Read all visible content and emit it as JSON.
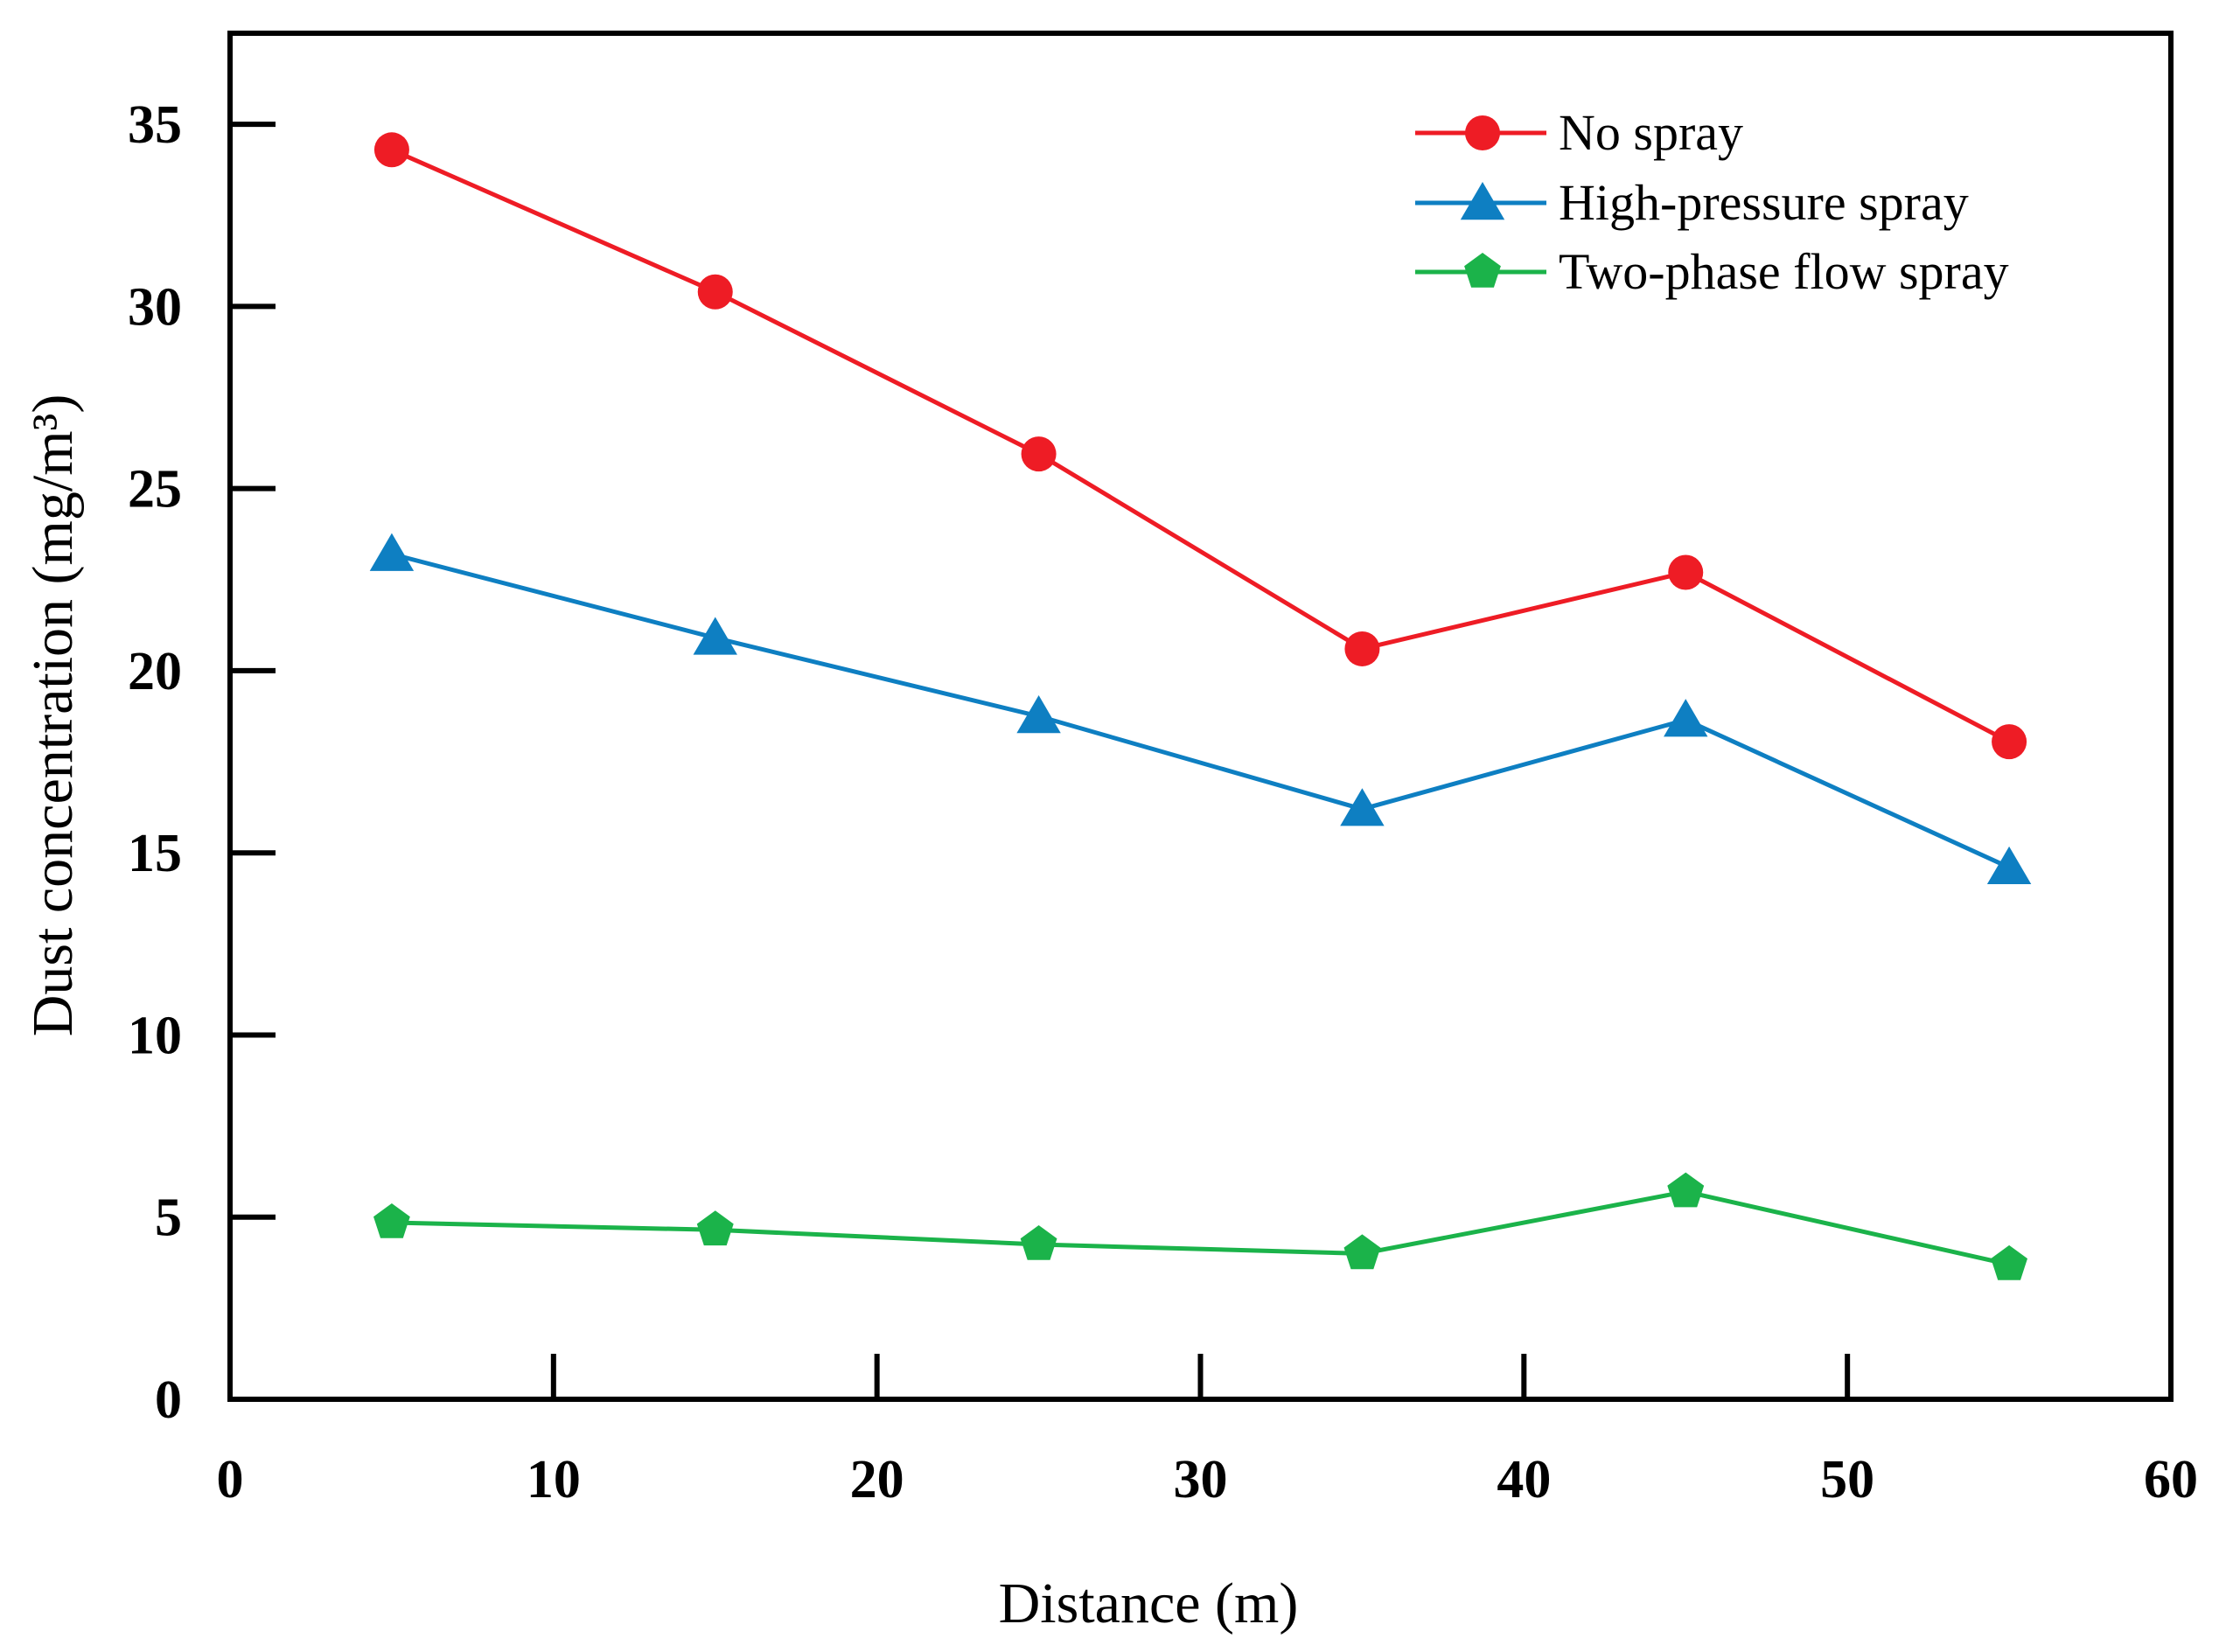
{
  "chart_data": {
    "type": "line",
    "title": "",
    "xlabel": "Distance (m)",
    "ylabel": "Dust concentration (mg/m³)",
    "xlim": [
      0,
      60
    ],
    "ylim": [
      0,
      37.5
    ],
    "x_ticks": [
      0,
      10,
      20,
      30,
      40,
      50,
      60
    ],
    "y_ticks": [
      0,
      5,
      10,
      15,
      20,
      25,
      30,
      35
    ],
    "grid": false,
    "legend_position": "top-right",
    "x": [
      5,
      15,
      25,
      35,
      45,
      55
    ],
    "series": [
      {
        "name": "No spray",
        "marker": "circle",
        "color": "#ee1c25",
        "values": [
          34.3,
          30.4,
          25.95,
          20.6,
          22.7,
          18.05
        ]
      },
      {
        "name": "High-pressure spray",
        "marker": "triangle",
        "color": "#0e7fc2",
        "values": [
          23.2,
          20.9,
          18.75,
          16.2,
          18.65,
          14.6
        ]
      },
      {
        "name": "Two-phase flow spray",
        "marker": "pentagon",
        "color": "#1bb34a",
        "values": [
          4.85,
          4.65,
          4.25,
          4.0,
          5.7,
          3.7
        ]
      }
    ]
  }
}
